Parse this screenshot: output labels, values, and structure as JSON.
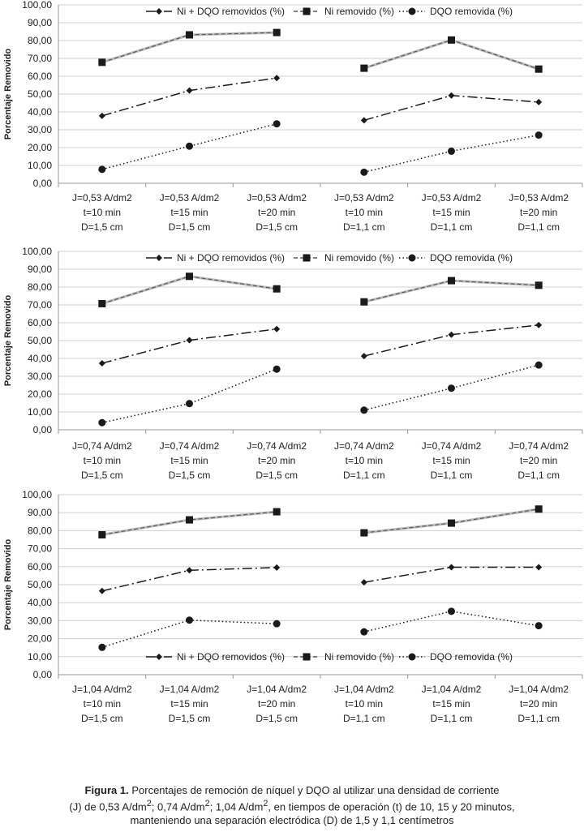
{
  "legend": {
    "ni_dqo": "Ni + DQO removidos (%)",
    "ni": "Ni removido (%)",
    "dqo": "DQO removida (%)"
  },
  "colors": {
    "line": "#1a1a1a",
    "axis": "#9a9a9a",
    "grid": "#d0d0d0"
  },
  "chart_data": [
    {
      "type": "line",
      "ylabel": "Porcentaje Removido",
      "ylim": [
        0,
        100
      ],
      "yticks": [
        "0,00",
        "10,00",
        "20,00",
        "30,00",
        "40,00",
        "50,00",
        "60,00",
        "70,00",
        "80,00",
        "90,00",
        "100,00"
      ],
      "legend_position": "top",
      "categories": [
        [
          "J=0,53 A/dm2",
          "t=10 min",
          "D=1,5 cm"
        ],
        [
          "J=0,53 A/dm2",
          "t=15 min",
          "D=1,5 cm"
        ],
        [
          "J=0,53 A/dm2",
          "t=20 min",
          "D=1,5 cm"
        ],
        [
          "J=0,53 A/dm2",
          "t=10 min",
          "D=1,1 cm"
        ],
        [
          "J=0,53 A/dm2",
          "t=15 min",
          "D=1,1 cm"
        ],
        [
          "J=0,53 A/dm2",
          "t=20 min",
          "D=1,1 cm"
        ]
      ],
      "series": [
        {
          "name": "Ni + DQO removidos (%)",
          "key": "ni_dqo",
          "values": [
            37.8,
            52.0,
            59.0,
            35.3,
            49.2,
            45.5
          ]
        },
        {
          "name": "Ni removido (%)",
          "key": "ni",
          "values": [
            67.8,
            83.2,
            84.5,
            64.5,
            80.3,
            64.0
          ]
        },
        {
          "name": "DQO removida (%)",
          "key": "dqo",
          "values": [
            7.8,
            20.8,
            33.3,
            6.2,
            18.0,
            27.0
          ]
        }
      ]
    },
    {
      "type": "line",
      "ylabel": "Porcentaje Removido",
      "ylim": [
        0,
        100
      ],
      "yticks": [
        "0,00",
        "10,00",
        "20,00",
        "30,00",
        "40,00",
        "50,00",
        "60,00",
        "70,00",
        "80,00",
        "90,00",
        "100,00"
      ],
      "legend_position": "top",
      "categories": [
        [
          "J=0,74 A/dm2",
          "t=10 min",
          "D=1,5 cm"
        ],
        [
          "J=0,74 A/dm2",
          "t=15 min",
          "D=1,5 cm"
        ],
        [
          "J=0,74 A/dm2",
          "t=20 min",
          "D=1,5 cm"
        ],
        [
          "J=0,74 A/dm2",
          "t=10 min",
          "D=1,1 cm"
        ],
        [
          "J=0,74 A/dm2",
          "t=15 min",
          "D=1,1 cm"
        ],
        [
          "J=0,74 A/dm2",
          "t=20 min",
          "D=1,1 cm"
        ]
      ],
      "series": [
        {
          "name": "Ni + DQO removidos (%)",
          "key": "ni_dqo",
          "values": [
            37.3,
            50.2,
            56.5,
            41.3,
            53.3,
            58.7
          ]
        },
        {
          "name": "Ni removido (%)",
          "key": "ni",
          "values": [
            70.7,
            86.0,
            79.0,
            71.7,
            83.6,
            81.0
          ]
        },
        {
          "name": "DQO removida (%)",
          "key": "dqo",
          "values": [
            4.0,
            14.7,
            34.0,
            11.0,
            23.3,
            36.3
          ]
        }
      ]
    },
    {
      "type": "line",
      "ylabel": "Porcentaje Removido",
      "ylim": [
        0,
        100
      ],
      "yticks": [
        "0,00",
        "10,00",
        "20,00",
        "30,00",
        "40,00",
        "50,00",
        "60,00",
        "70,00",
        "80,00",
        "90,00",
        "100,00"
      ],
      "legend_position": "bottom",
      "categories": [
        [
          "J=1,04 A/dm2",
          "t=10 min",
          "D=1,5 cm"
        ],
        [
          "J=1,04 A/dm2",
          "t=15 min",
          "D=1,5 cm"
        ],
        [
          "J=1,04 A/dm2",
          "t=20 min",
          "D=1,5 cm"
        ],
        [
          "J=1,04 A/dm2",
          "t=10 min",
          "D=1,1 cm"
        ],
        [
          "J=1,04 A/dm2",
          "t=15 min",
          "D=1,1 cm"
        ],
        [
          "J=1,04 A/dm2",
          "t=20 min",
          "D=1,1 cm"
        ]
      ],
      "series": [
        {
          "name": "Ni + DQO removidos (%)",
          "key": "ni_dqo",
          "values": [
            46.5,
            58.0,
            59.5,
            51.3,
            59.7,
            59.7
          ]
        },
        {
          "name": "Ni removido (%)",
          "key": "ni",
          "values": [
            77.7,
            86.0,
            90.5,
            78.8,
            84.2,
            92.0
          ]
        },
        {
          "name": "DQO removida (%)",
          "key": "dqo",
          "values": [
            15.2,
            30.3,
            28.3,
            23.8,
            35.2,
            27.2
          ]
        }
      ]
    }
  ],
  "caption": {
    "label": "Figura 1.",
    "line1": " Porcentajes de remoción de níquel y DQO al utilizar una densidad de corriente",
    "line2_a": "(J) de 0,53 A/dm",
    "sup": "2",
    "line2_b": "; 0,74 A/dm",
    "line2_c": "; 1,04 A/dm",
    "line2_d": ", en tiempos de operación (t) de 10, 15 y 20 minutos,",
    "line3": "manteniendo una separación electródica (D) de 1,5 y 1,1 centímetros"
  }
}
